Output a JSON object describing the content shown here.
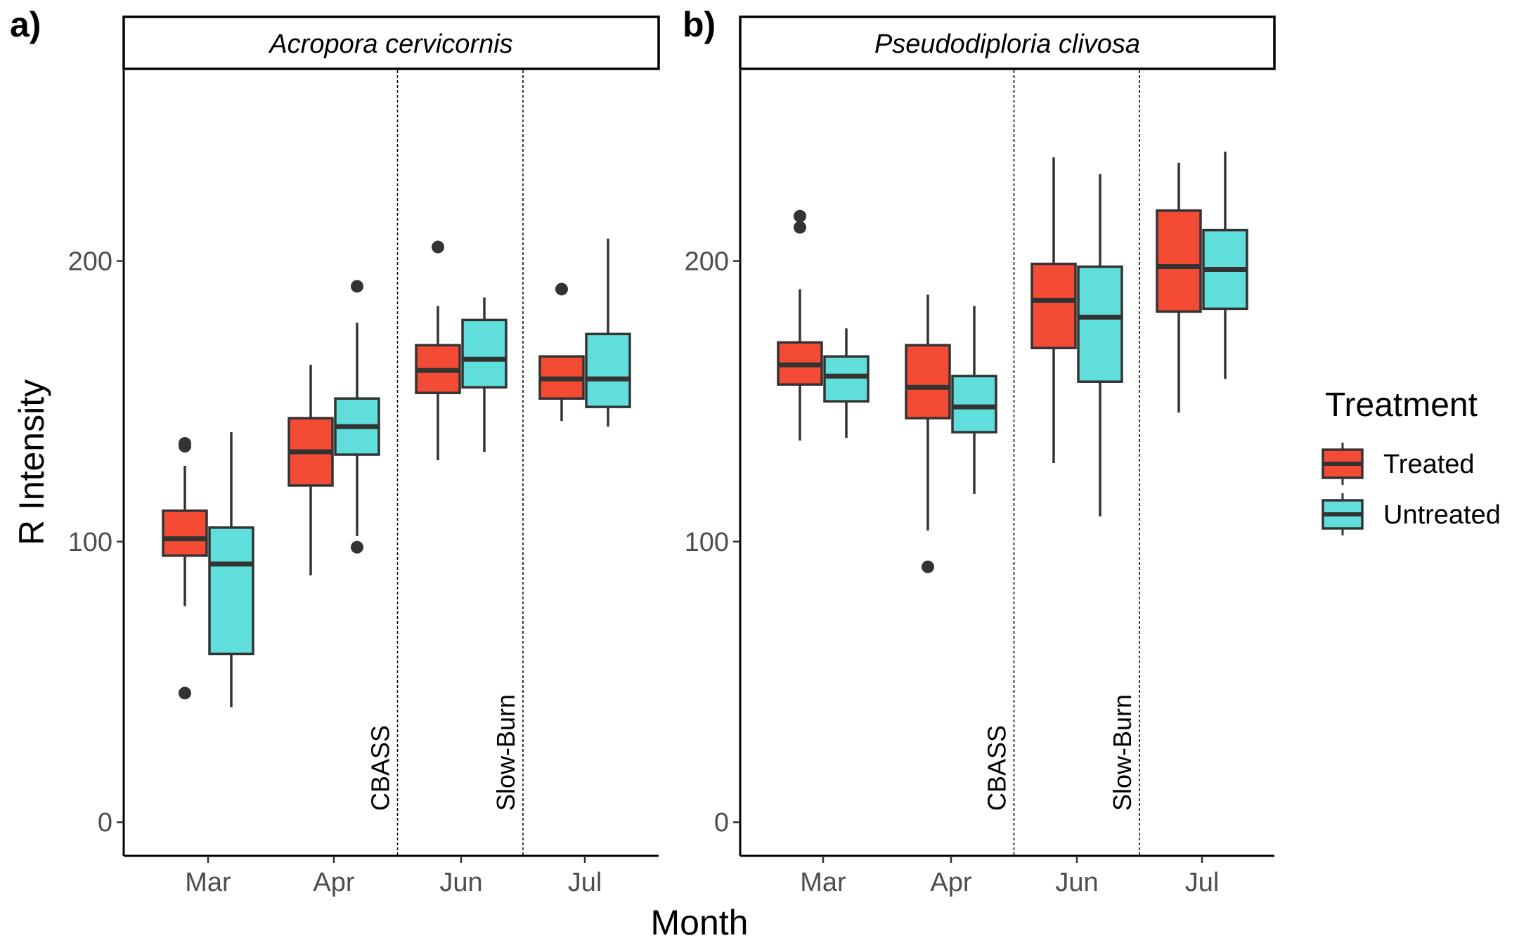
{
  "chart_data": {
    "type": "boxplot",
    "xlabel": "Month",
    "ylabel": "R Intensity",
    "ylim": [
      -12,
      268
    ],
    "yticks": [
      0,
      100,
      200
    ],
    "categories": [
      "Mar",
      "Apr",
      "Jun",
      "Jul"
    ],
    "grid": false,
    "legend": {
      "title": "Treatment",
      "position": "right",
      "entries": [
        {
          "name": "Treated",
          "color": "#F44B34"
        },
        {
          "name": "Untreated",
          "color": "#5FDEDB"
        }
      ]
    },
    "annotations": [
      {
        "label": "CBASS",
        "between": [
          "Apr",
          "Jun"
        ]
      },
      {
        "label": "Slow-Burn",
        "between": [
          "Jun",
          "Jul"
        ]
      }
    ],
    "panels": [
      {
        "letter": "a)",
        "title": "Acropora cervicornis",
        "series": [
          {
            "name": "Treated",
            "boxes": [
              {
                "month": "Mar",
                "whisker_low": 77,
                "q1": 95,
                "median": 101,
                "q3": 111,
                "whisker_high": 127,
                "outliers": [
                  46,
                  134,
                  135
                ]
              },
              {
                "month": "Apr",
                "whisker_low": 88,
                "q1": 120,
                "median": 132,
                "q3": 144,
                "whisker_high": 163,
                "outliers": []
              },
              {
                "month": "Jun",
                "whisker_low": 129,
                "q1": 153,
                "median": 161,
                "q3": 170,
                "whisker_high": 184,
                "outliers": [
                  205
                ]
              },
              {
                "month": "Jul",
                "whisker_low": 143,
                "q1": 151,
                "median": 158,
                "q3": 166,
                "whisker_high": 166,
                "outliers": [
                  190
                ]
              }
            ]
          },
          {
            "name": "Untreated",
            "boxes": [
              {
                "month": "Mar",
                "whisker_low": 41,
                "q1": 60,
                "median": 92,
                "q3": 105,
                "whisker_high": 139,
                "outliers": []
              },
              {
                "month": "Apr",
                "whisker_low": 102,
                "q1": 131,
                "median": 141,
                "q3": 151,
                "whisker_high": 178,
                "outliers": [
                  98,
                  191
                ]
              },
              {
                "month": "Jun",
                "whisker_low": 132,
                "q1": 155,
                "median": 165,
                "q3": 179,
                "whisker_high": 187,
                "outliers": []
              },
              {
                "month": "Jul",
                "whisker_low": 141,
                "q1": 148,
                "median": 158,
                "q3": 174,
                "whisker_high": 208,
                "outliers": []
              }
            ]
          }
        ]
      },
      {
        "letter": "b)",
        "title": "Pseudodiploria clivosa",
        "series": [
          {
            "name": "Treated",
            "boxes": [
              {
                "month": "Mar",
                "whisker_low": 136,
                "q1": 156,
                "median": 163,
                "q3": 171,
                "whisker_high": 190,
                "outliers": [
                  212,
                  216
                ]
              },
              {
                "month": "Apr",
                "whisker_low": 104,
                "q1": 144,
                "median": 155,
                "q3": 170,
                "whisker_high": 188,
                "outliers": [
                  91
                ]
              },
              {
                "month": "Jun",
                "whisker_low": 128,
                "q1": 169,
                "median": 186,
                "q3": 199,
                "whisker_high": 237,
                "outliers": []
              },
              {
                "month": "Jul",
                "whisker_low": 146,
                "q1": 182,
                "median": 198,
                "q3": 218,
                "whisker_high": 235,
                "outliers": []
              }
            ]
          },
          {
            "name": "Untreated",
            "boxes": [
              {
                "month": "Mar",
                "whisker_low": 137,
                "q1": 150,
                "median": 159,
                "q3": 166,
                "whisker_high": 176,
                "outliers": []
              },
              {
                "month": "Apr",
                "whisker_low": 117,
                "q1": 139,
                "median": 148,
                "q3": 159,
                "whisker_high": 184,
                "outliers": []
              },
              {
                "month": "Jun",
                "whisker_low": 109,
                "q1": 157,
                "median": 180,
                "q3": 198,
                "whisker_high": 231,
                "outliers": []
              },
              {
                "month": "Jul",
                "whisker_low": 158,
                "q1": 183,
                "median": 197,
                "q3": 211,
                "whisker_high": 239,
                "outliers": []
              }
            ]
          }
        ]
      }
    ]
  }
}
